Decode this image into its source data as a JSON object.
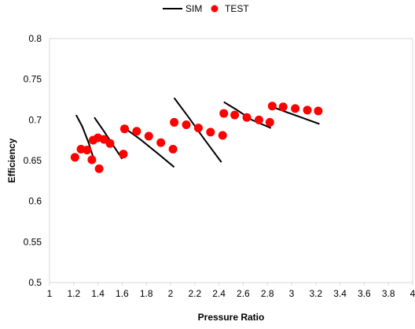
{
  "chart_data": {
    "type": "line+scatter",
    "title": "",
    "xlabel": "Pressure Ratio",
    "ylabel": "Efficiency",
    "xlim": [
      1,
      4
    ],
    "ylim": [
      0.5,
      0.8
    ],
    "x_ticks": [
      "1",
      "1.2",
      "1.4",
      "1.6",
      "1.8",
      "2",
      "2.2",
      "2.4",
      "2.6",
      "2.8",
      "3",
      "3.2",
      "3.4",
      "3.6",
      "3.8",
      "4"
    ],
    "y_ticks": [
      "0.5",
      "0.55",
      "0.6",
      "0.65",
      "0.7",
      "0.75",
      "0.8"
    ],
    "grid": false,
    "legend_position": "top-center",
    "legend": [
      {
        "label": "SIM",
        "marker": "line",
        "color": "#000000"
      },
      {
        "label": "TEST",
        "marker": "circle",
        "color": "#ff0000"
      }
    ],
    "sim_lines": [
      [
        [
          1.22,
          0.706
        ],
        [
          1.27,
          0.692
        ],
        [
          1.32,
          0.673
        ],
        [
          1.37,
          0.65
        ]
      ],
      [
        [
          1.37,
          0.703
        ],
        [
          1.45,
          0.686
        ],
        [
          1.52,
          0.67
        ],
        [
          1.6,
          0.652
        ]
      ],
      [
        [
          1.62,
          0.69
        ],
        [
          1.75,
          0.676
        ],
        [
          1.9,
          0.658
        ],
        [
          2.03,
          0.642
        ]
      ],
      [
        [
          2.03,
          0.727
        ],
        [
          2.15,
          0.703
        ],
        [
          2.28,
          0.676
        ],
        [
          2.42,
          0.648
        ]
      ],
      [
        [
          2.44,
          0.722
        ],
        [
          2.55,
          0.712
        ],
        [
          2.67,
          0.7
        ],
        [
          2.83,
          0.69
        ]
      ],
      [
        [
          2.84,
          0.716
        ],
        [
          2.95,
          0.71
        ],
        [
          3.08,
          0.703
        ],
        [
          3.23,
          0.695
        ]
      ]
    ],
    "test_points": [
      [
        1.21,
        0.654
      ],
      [
        1.26,
        0.664
      ],
      [
        1.31,
        0.663
      ],
      [
        1.35,
        0.651
      ],
      [
        1.36,
        0.675
      ],
      [
        1.4,
        0.678
      ],
      [
        1.41,
        0.64
      ],
      [
        1.45,
        0.676
      ],
      [
        1.5,
        0.671
      ],
      [
        1.61,
        0.658
      ],
      [
        1.62,
        0.689
      ],
      [
        1.72,
        0.686
      ],
      [
        1.82,
        0.68
      ],
      [
        1.92,
        0.672
      ],
      [
        2.02,
        0.664
      ],
      [
        2.03,
        0.697
      ],
      [
        2.13,
        0.694
      ],
      [
        2.23,
        0.69
      ],
      [
        2.33,
        0.685
      ],
      [
        2.43,
        0.681
      ],
      [
        2.44,
        0.708
      ],
      [
        2.53,
        0.706
      ],
      [
        2.63,
        0.703
      ],
      [
        2.73,
        0.7
      ],
      [
        2.82,
        0.697
      ],
      [
        2.84,
        0.717
      ],
      [
        2.93,
        0.716
      ],
      [
        3.03,
        0.714
      ],
      [
        3.13,
        0.712
      ],
      [
        3.22,
        0.711
      ]
    ]
  }
}
